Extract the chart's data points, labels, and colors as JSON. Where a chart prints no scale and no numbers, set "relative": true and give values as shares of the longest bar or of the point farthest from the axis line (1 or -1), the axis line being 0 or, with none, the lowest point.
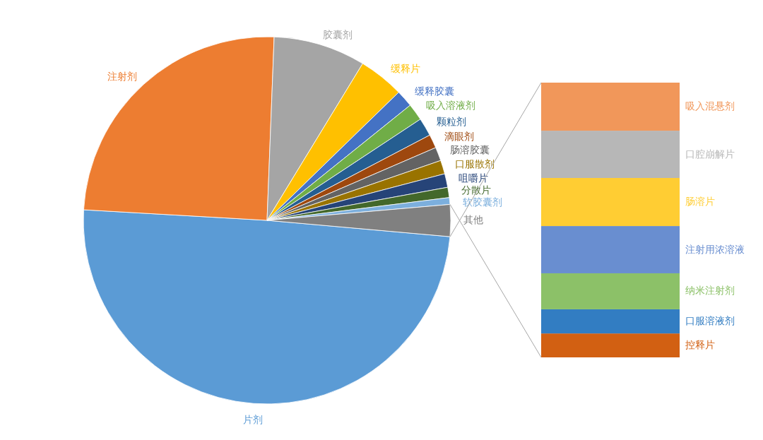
{
  "chart_data": [
    {
      "type": "pie",
      "categories": [
        "片剂",
        "注射剂",
        "胶囊剂",
        "缓释片",
        "缓释胶囊",
        "吸入溶液剂",
        "颗粒剂",
        "滴眼剂",
        "肠溶胶囊",
        "口服散剂",
        "咀嚼片",
        "分散片",
        "软胶囊剂",
        "其他"
      ],
      "values": [
        49.5,
        24.7,
        8.1,
        4.0,
        1.5,
        1.5,
        1.6,
        1.2,
        1.2,
        1.2,
        1.2,
        0.9,
        0.6,
        2.8
      ],
      "colors": [
        "#5b9bd5",
        "#ed7d31",
        "#a5a5a5",
        "#ffc000",
        "#4472c4",
        "#70ad47",
        "#255e91",
        "#9e480e",
        "#636363",
        "#997300",
        "#264478",
        "#43682b",
        "#7cafdd",
        "#808080"
      ]
    },
    {
      "type": "bar",
      "stacked": true,
      "relative": true,
      "categories": [
        null
      ],
      "series": [
        {
          "name": "控释片",
          "color": "#d26012",
          "values": [
            0.087
          ]
        },
        {
          "name": "口服溶液剂",
          "color": "#327dc2",
          "values": [
            0.088
          ]
        },
        {
          "name": "纳米注射剂",
          "color": "#8cc168",
          "values": [
            0.131
          ]
        },
        {
          "name": "注射用浓溶液",
          "color": "#698ed0",
          "values": [
            0.172
          ]
        },
        {
          "name": "肠溶片",
          "color": "#ffcd33",
          "values": [
            0.175
          ]
        },
        {
          "name": "口腔崩解片",
          "color": "#b7b7b7",
          "values": [
            0.172
          ]
        },
        {
          "name": "吸入混悬剂",
          "color": "#f1975a",
          "values": [
            0.175
          ]
        }
      ]
    }
  ]
}
